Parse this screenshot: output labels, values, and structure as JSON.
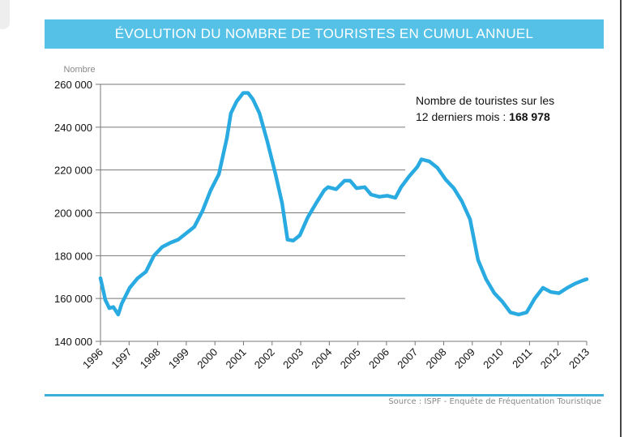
{
  "chart_data": {
    "type": "line",
    "title": "ÉVOLUTION DU NOMBRE DE TOURISTES EN CUMUL ANNUEL",
    "ylabel": "Nombre",
    "xlabel": "",
    "ylim": [
      140000,
      260000
    ],
    "xlim": [
      1996,
      2013
    ],
    "yticks": [
      "140 000",
      "160 000",
      "180 000",
      "200 000",
      "220 000",
      "240 000",
      "260 000"
    ],
    "ytick_values": [
      140000,
      160000,
      180000,
      200000,
      220000,
      240000,
      260000
    ],
    "xticks": [
      "1996",
      "1997",
      "1998",
      "1999",
      "2000",
      "2001",
      "2002",
      "2003",
      "2004",
      "2005",
      "2006",
      "2007",
      "2008",
      "2009",
      "2010",
      "2011",
      "2012",
      "2013"
    ],
    "grid": "horizontal",
    "line_color": "#29abe2",
    "series": [
      {
        "x": [
          1996.0,
          1996.17,
          1996.31,
          1996.45,
          1996.62,
          1996.74,
          1997.02,
          1997.3,
          1997.59,
          1997.87,
          1998.15,
          1998.44,
          1998.72,
          1999.0,
          1999.28,
          1999.57,
          1999.85,
          2000.14,
          2000.42,
          2000.56,
          2000.76,
          2000.99,
          2001.16,
          2001.33,
          2001.56,
          2001.84,
          2002.12,
          2002.35,
          2002.54,
          2002.74,
          2002.97,
          2003.25,
          2003.54,
          2003.82,
          2003.96,
          2004.24,
          2004.53,
          2004.73,
          2004.95,
          2005.24,
          2005.46,
          2005.75,
          2006.03,
          2006.31,
          2006.51,
          2006.79,
          2007.08,
          2007.22,
          2007.5,
          2007.78,
          2008.07,
          2008.35,
          2008.63,
          2008.92,
          2009.2,
          2009.48,
          2009.77,
          2010.05,
          2010.33,
          2010.62,
          2010.9,
          2011.18,
          2011.47,
          2011.75,
          2012.03,
          2012.32,
          2012.6,
          2012.88,
          2013.0
        ],
        "values": [
          169500,
          159300,
          155500,
          156000,
          152500,
          157500,
          165000,
          169500,
          172500,
          180000,
          184000,
          186000,
          187500,
          190500,
          193500,
          201000,
          210500,
          218000,
          235000,
          246500,
          252000,
          256000,
          256000,
          253000,
          246500,
          233000,
          218000,
          204500,
          187500,
          187000,
          189500,
          198000,
          204500,
          210500,
          212000,
          211000,
          215000,
          215000,
          211500,
          212000,
          208500,
          207500,
          208000,
          207000,
          212000,
          217000,
          221500,
          225000,
          224000,
          221000,
          215500,
          211500,
          205500,
          197000,
          178000,
          169000,
          162500,
          158500,
          153500,
          152500,
          153500,
          160000,
          165000,
          163000,
          162500,
          165000,
          167000,
          168500,
          168978
        ]
      }
    ],
    "annotation": {
      "line1": "Nombre de touristes sur les",
      "line2": "12 derniers mois : ",
      "value": "168 978"
    },
    "source": "Source : ISPF - Enquête de Fréquentation Touristique"
  }
}
